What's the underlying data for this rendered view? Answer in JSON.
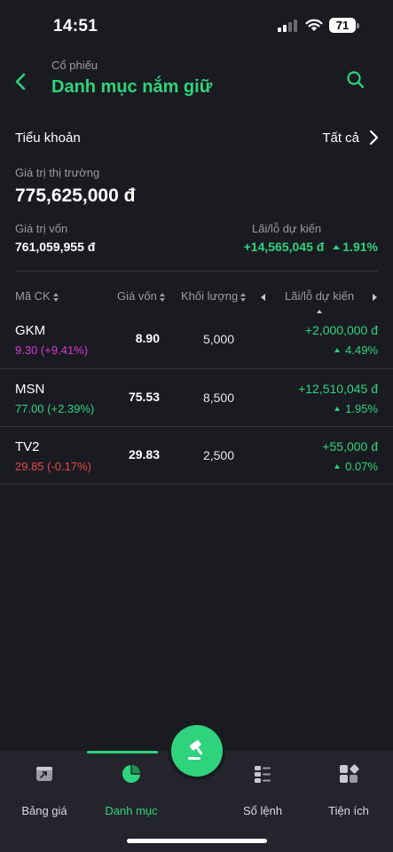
{
  "status": {
    "time": "14:51",
    "battery": "71"
  },
  "header": {
    "subtitle": "Cổ phiếu",
    "title": "Danh mục nắm giữ"
  },
  "account": {
    "label": "Tiểu khoản",
    "value": "Tất cả"
  },
  "summary": {
    "market_value_label": "Giá trị thị trường",
    "market_value": "775,625,000 đ",
    "cost_value_label": "Giá trị vốn",
    "cost_value": "761,059,955 đ",
    "pl_label": "Lãi/lỗ dự kiến",
    "pl_value": "+14,565,045 đ",
    "pl_percent": "1.91%"
  },
  "table": {
    "headers": {
      "symbol": "Mã CK",
      "cost": "Giá vốn",
      "quantity": "Khối lượng",
      "pl": "Lãi/lỗ dự kiến"
    },
    "rows": [
      {
        "symbol": "GKM",
        "price": "9.30 (+9.41%)",
        "price_color": "#d43ad3",
        "cost": "8.90",
        "quantity": "5,000",
        "pl": "+2,000,000 đ",
        "pl_pct": "4.49%"
      },
      {
        "symbol": "MSN",
        "price": "77.00 (+2.39%)",
        "price_color": "#2fd37d",
        "cost": "75.53",
        "quantity": "8,500",
        "pl": "+12,510,045 đ",
        "pl_pct": "1.95%"
      },
      {
        "symbol": "TV2",
        "price": "29.85 (-0.17%)",
        "price_color": "#e5484d",
        "cost": "29.83",
        "quantity": "2,500",
        "pl": "+55,000 đ",
        "pl_pct": "0.07%"
      }
    ]
  },
  "tabs": [
    {
      "label": "Bảng giá",
      "icon": "price-board-icon"
    },
    {
      "label": "Danh mục",
      "icon": "pie-chart-icon",
      "active": true
    },
    {
      "label": "Sổ lệnh",
      "icon": "order-book-icon"
    },
    {
      "label": "Tiện ích",
      "icon": "utilities-icon"
    }
  ],
  "colors": {
    "accent": "#2fd37d",
    "background": "#1a1b21",
    "up": "#2fd37d",
    "down": "#e5484d",
    "ceiling": "#d43ad3"
  }
}
